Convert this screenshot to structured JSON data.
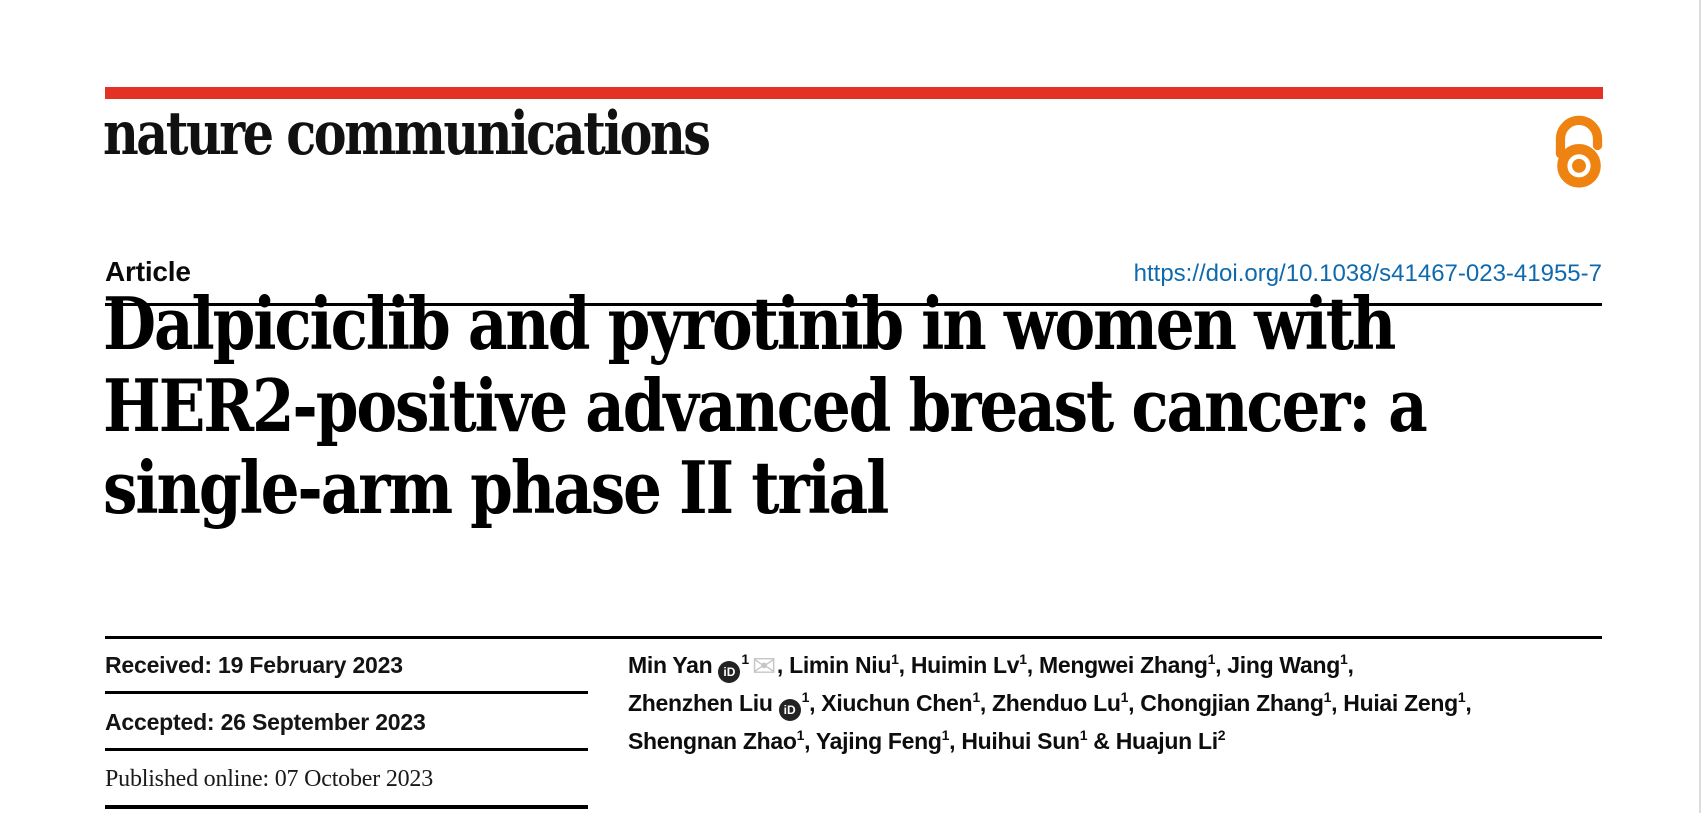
{
  "brand": {
    "logo_text": "nature communications",
    "bar_color": "#e33124",
    "open_access_color": "#ee8312"
  },
  "article_header": {
    "label": "Article",
    "doi": "https://doi.org/10.1038/s41467-023-41955-7",
    "doi_color": "#0e6aad"
  },
  "title": {
    "lines": [
      "Dalpiciclib and pyrotinib in women with",
      "HER2-positive advanced breast cancer: a",
      "single-arm phase II trial"
    ]
  },
  "history": {
    "received": "Received: 19 February 2023",
    "accepted": "Accepted: 26 September 2023",
    "published": "Published online: 07 October 2023"
  },
  "authors": {
    "orcid_icon_label": "iD",
    "mail_icon_glyph": "✉",
    "lines": [
      [
        {
          "t": "text",
          "v": "Min Yan"
        },
        {
          "t": "orcid"
        },
        {
          "t": "sup",
          "v": "1"
        },
        {
          "t": "mail"
        },
        {
          "t": "text",
          "v": ", Limin Niu"
        },
        {
          "t": "sup",
          "v": "1"
        },
        {
          "t": "text",
          "v": ", Huimin Lv"
        },
        {
          "t": "sup",
          "v": "1"
        },
        {
          "t": "text",
          "v": ", Mengwei Zhang"
        },
        {
          "t": "sup",
          "v": "1"
        },
        {
          "t": "text",
          "v": ", Jing Wang"
        },
        {
          "t": "sup",
          "v": "1"
        },
        {
          "t": "text",
          "v": ","
        }
      ],
      [
        {
          "t": "text",
          "v": "Zhenzhen Liu"
        },
        {
          "t": "orcid"
        },
        {
          "t": "sup",
          "v": "1"
        },
        {
          "t": "text",
          "v": ", Xiuchun Chen"
        },
        {
          "t": "sup",
          "v": "1"
        },
        {
          "t": "text",
          "v": ", Zhenduo Lu"
        },
        {
          "t": "sup",
          "v": "1"
        },
        {
          "t": "text",
          "v": ", Chongjian Zhang"
        },
        {
          "t": "sup",
          "v": "1"
        },
        {
          "t": "text",
          "v": ", Huiai Zeng"
        },
        {
          "t": "sup",
          "v": "1"
        },
        {
          "t": "text",
          "v": ","
        }
      ],
      [
        {
          "t": "text",
          "v": "Shengnan Zhao"
        },
        {
          "t": "sup",
          "v": "1"
        },
        {
          "t": "text",
          "v": ", Yajing Feng"
        },
        {
          "t": "sup",
          "v": "1"
        },
        {
          "t": "text",
          "v": ", Huihui Sun"
        },
        {
          "t": "sup",
          "v": "1"
        },
        {
          "t": "text",
          "v": " & Huajun Li"
        },
        {
          "t": "sup",
          "v": "2"
        }
      ]
    ]
  }
}
